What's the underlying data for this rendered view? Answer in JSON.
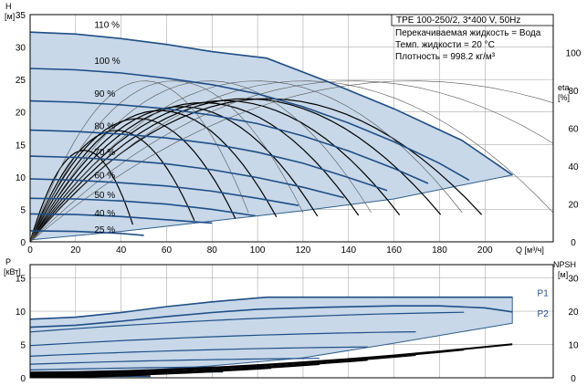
{
  "title": "TPE 100-250/2, 3*400 V, 50Hz",
  "info_lines": [
    "Перекачиваемая жидкость = Вода",
    "Темп. жидкости = 20 °C",
    "Плотность = 998.2 кг/м³"
  ],
  "colors": {
    "envelope_fill": "#c8d8e8",
    "envelope_edge": "#2f5f8f",
    "head_curve": "#1f4e87",
    "eta_curve": "#000000",
    "power_curve": "#1f4e87",
    "npsh_curve": "#000000",
    "series_label": "#1f4e87"
  },
  "chart_data": [
    {
      "type": "line",
      "id": "head",
      "xlabel": "Q [м³/ч]",
      "ylabel_left": [
        "H",
        "[м]"
      ],
      "ylabel_right": [
        "eta",
        "[%]"
      ],
      "xlim": [
        0,
        230
      ],
      "ylim": [
        0,
        35
      ],
      "y2lim": [
        0,
        120
      ],
      "xticks": [
        0,
        20,
        40,
        60,
        80,
        100,
        120,
        140,
        160,
        180,
        200
      ],
      "yticks": [
        0,
        5,
        10,
        15,
        20,
        25,
        30,
        35
      ],
      "y2ticks": [
        0,
        20,
        40,
        60,
        80,
        100
      ],
      "grid": true,
      "envelope": {
        "top": [
          [
            0,
            32.3
          ],
          [
            20,
            32.0
          ],
          [
            40,
            31.3
          ],
          [
            60,
            30.4
          ],
          [
            80,
            29.3
          ],
          [
            104,
            28.3
          ],
          [
            130,
            24.8
          ],
          [
            160,
            20.5
          ],
          [
            190,
            15.6
          ],
          [
            212,
            10.3
          ]
        ],
        "bottom": [
          [
            0,
            0.3
          ],
          [
            40,
            1.6
          ],
          [
            80,
            3.2
          ],
          [
            120,
            4.8
          ],
          [
            160,
            6.6
          ],
          [
            212,
            10.3
          ]
        ]
      },
      "series": [
        {
          "name": "110 %",
          "label_at": [
            17,
            33.5
          ],
          "values": [
            [
              0,
              32.3
            ],
            [
              20,
              32.0
            ],
            [
              40,
              31.3
            ],
            [
              60,
              30.4
            ],
            [
              80,
              29.3
            ],
            [
              104,
              28.3
            ],
            [
              130,
              24.8
            ],
            [
              160,
              20.5
            ],
            [
              190,
              15.6
            ],
            [
              212,
              10.3
            ]
          ]
        },
        {
          "name": "100 %",
          "label_at": [
            17,
            28.0
          ],
          "values": [
            [
              0,
              26.7
            ],
            [
              20,
              26.5
            ],
            [
              40,
              26.0
            ],
            [
              60,
              25.2
            ],
            [
              80,
              24.2
            ],
            [
              100,
              22.8
            ],
            [
              120,
              20.8
            ],
            [
              140,
              18.3
            ],
            [
              160,
              15.4
            ],
            [
              180,
              12.1
            ],
            [
              193,
              9.5
            ]
          ]
        },
        {
          "name": "90 %",
          "label_at": [
            17,
            22.9
          ],
          "values": [
            [
              0,
              21.7
            ],
            [
              20,
              21.5
            ],
            [
              40,
              21.1
            ],
            [
              60,
              20.5
            ],
            [
              80,
              19.5
            ],
            [
              100,
              18.2
            ],
            [
              120,
              16.3
            ],
            [
              140,
              14.0
            ],
            [
              160,
              11.3
            ],
            [
              175,
              9.0
            ]
          ]
        },
        {
          "name": "80 %",
          "label_at": [
            17,
            17.9
          ],
          "values": [
            [
              0,
              17.2
            ],
            [
              20,
              17.0
            ],
            [
              40,
              16.6
            ],
            [
              60,
              16.0
            ],
            [
              80,
              15.1
            ],
            [
              100,
              13.8
            ],
            [
              120,
              12.1
            ],
            [
              140,
              9.9
            ],
            [
              157,
              7.9
            ]
          ]
        },
        {
          "name": "70 %",
          "label_at": [
            17,
            13.9
          ],
          "values": [
            [
              0,
              13.2
            ],
            [
              20,
              13.0
            ],
            [
              40,
              12.6
            ],
            [
              60,
              12.0
            ],
            [
              80,
              11.1
            ],
            [
              100,
              9.9
            ],
            [
              120,
              8.4
            ],
            [
              138,
              6.8
            ]
          ]
        },
        {
          "name": "60 %",
          "label_at": [
            17,
            10.3
          ],
          "values": [
            [
              0,
              9.7
            ],
            [
              20,
              9.5
            ],
            [
              40,
              9.1
            ],
            [
              60,
              8.6
            ],
            [
              80,
              7.8
            ],
            [
              100,
              6.7
            ],
            [
              118,
              5.6
            ]
          ]
        },
        {
          "name": "50 %",
          "label_at": [
            17,
            7.3
          ],
          "values": [
            [
              0,
              6.7
            ],
            [
              20,
              6.6
            ],
            [
              40,
              6.3
            ],
            [
              60,
              5.8
            ],
            [
              80,
              5.0
            ],
            [
              99,
              4.0
            ]
          ]
        },
        {
          "name": "40 %",
          "label_at": [
            17,
            4.5
          ],
          "values": [
            [
              0,
              4.3
            ],
            [
              20,
              4.2
            ],
            [
              40,
              3.9
            ],
            [
              60,
              3.4
            ],
            [
              80,
              2.9
            ]
          ]
        },
        {
          "name": "25 %",
          "label_at": [
            17,
            2.0
          ],
          "values": [
            [
              0,
              1.7
            ],
            [
              20,
              1.6
            ],
            [
              40,
              1.3
            ],
            [
              50,
              1.0
            ]
          ]
        }
      ]
    },
    {
      "type": "line",
      "id": "power",
      "xlabel": "",
      "ylabel_left": [
        "P",
        "[кВт]"
      ],
      "ylabel_right": [
        "NPSH",
        "[м]"
      ],
      "xlim": [
        0,
        230
      ],
      "ylim": [
        0,
        17
      ],
      "y2lim": [
        0,
        34
      ],
      "yticks": [
        0,
        5,
        10,
        15
      ],
      "y2ticks": [
        0,
        10,
        20,
        30
      ],
      "grid": true,
      "envelope": {
        "top": [
          [
            0,
            8.8
          ],
          [
            20,
            9.1
          ],
          [
            40,
            9.8
          ],
          [
            60,
            10.7
          ],
          [
            80,
            11.4
          ],
          [
            104,
            12.1
          ],
          [
            140,
            12.1
          ],
          [
            212,
            12.1
          ]
        ],
        "bottom": [
          [
            0,
            0.3
          ],
          [
            40,
            0.9
          ],
          [
            80,
            1.8
          ],
          [
            120,
            3.0
          ],
          [
            160,
            5.2
          ],
          [
            212,
            8.2
          ]
        ]
      },
      "series": [
        {
          "name": "P1",
          "label_at": [
            223,
            12.8
          ],
          "values": [
            [
              0,
              8.8
            ],
            [
              20,
              9.1
            ],
            [
              40,
              9.8
            ],
            [
              60,
              10.7
            ],
            [
              80,
              11.4
            ],
            [
              104,
              12.1
            ],
            [
              140,
              12.1
            ],
            [
              212,
              12.1
            ]
          ]
        },
        {
          "name": "P2",
          "label_at": [
            223,
            9.7
          ],
          "values": [
            [
              0,
              7.6
            ],
            [
              20,
              7.9
            ],
            [
              40,
              8.5
            ],
            [
              60,
              9.2
            ],
            [
              80,
              9.8
            ],
            [
              100,
              10.3
            ],
            [
              130,
              10.6
            ],
            [
              160,
              10.8
            ],
            [
              180,
              10.8
            ],
            [
              200,
              10.5
            ],
            [
              212,
              9.9
            ]
          ]
        }
      ]
    }
  ]
}
